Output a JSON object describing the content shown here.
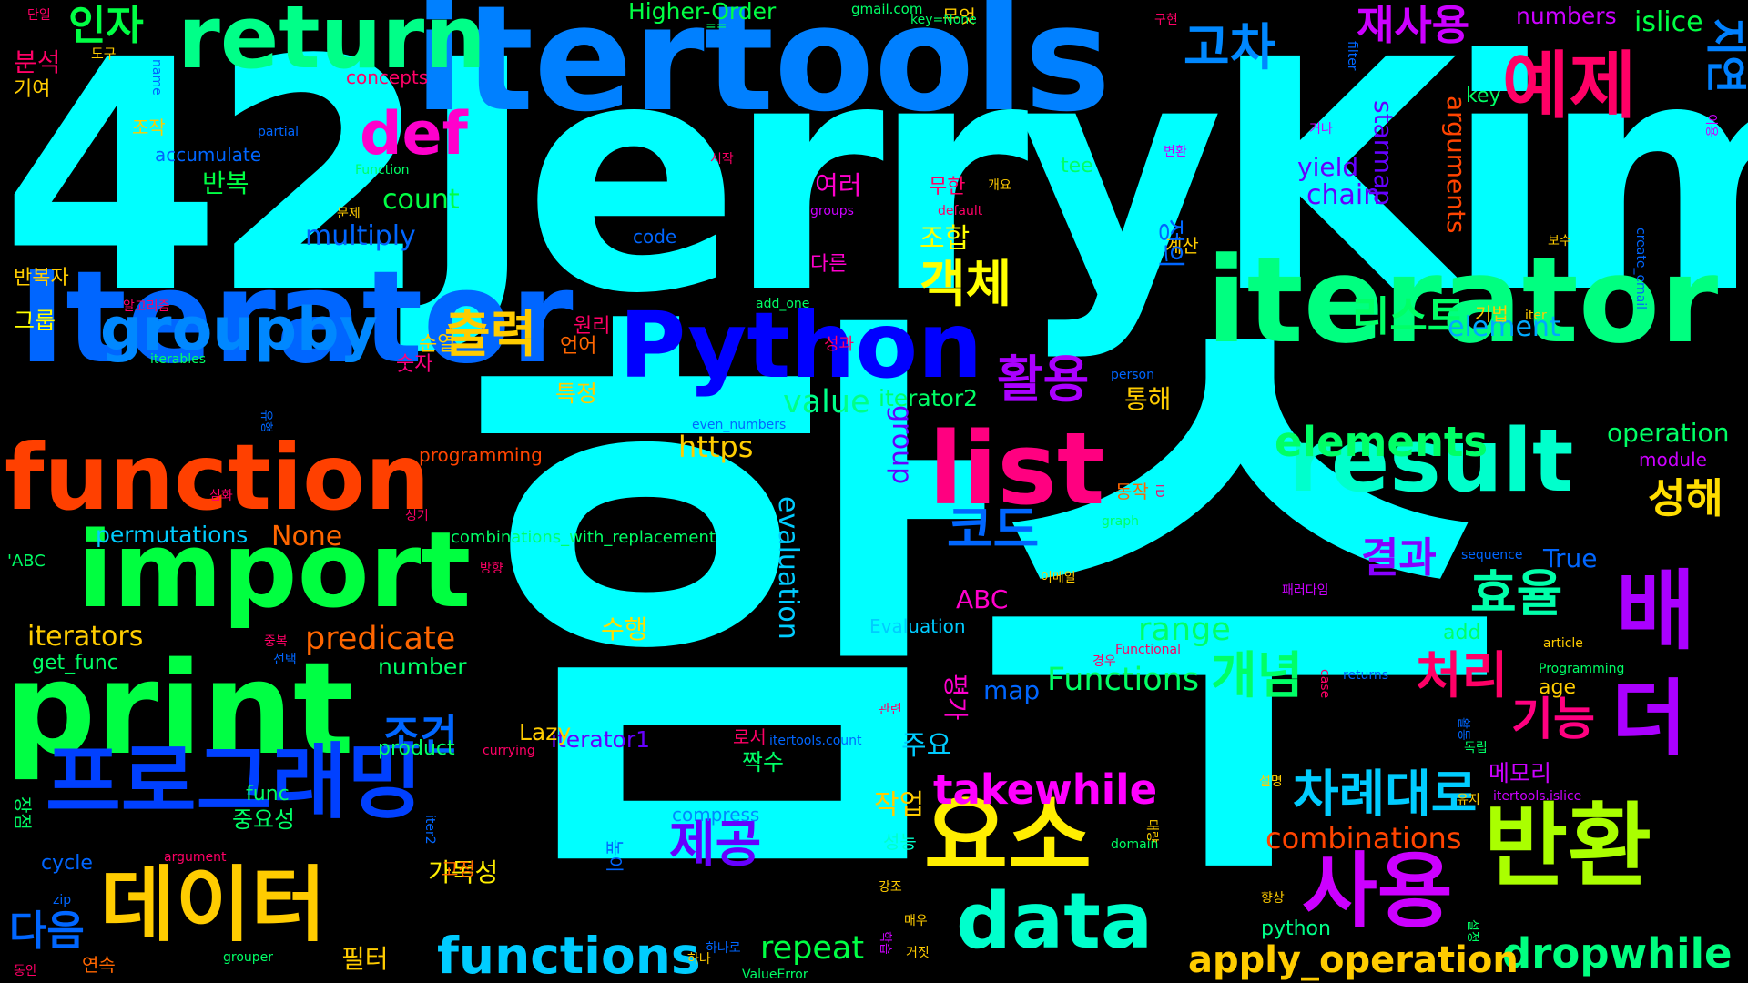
{
  "cloud": {
    "words": [
      {
        "text": "함수",
        "color": "#00ffff"
      },
      {
        "text": "42JerryKim",
        "color": "#00ffff"
      },
      {
        "text": "itertools",
        "color": "#0080ff"
      },
      {
        "text": "Iterator",
        "color": "#0066ff"
      },
      {
        "text": "iterator",
        "color": "#00ff80"
      },
      {
        "text": "return",
        "color": "#00ff88"
      },
      {
        "text": "Python",
        "color": "#0000ff"
      },
      {
        "text": "function",
        "color": "#ff4000"
      },
      {
        "text": "print",
        "color": "#00ff44"
      },
      {
        "text": "import",
        "color": "#00ff40"
      },
      {
        "text": "result",
        "color": "#00ffcc"
      },
      {
        "text": "list",
        "color": "#ff0080"
      },
      {
        "text": "data",
        "color": "#00ffcc"
      },
      {
        "text": "프로그래밍",
        "color": "#0040ff"
      },
      {
        "text": "데이터",
        "color": "#ffcc00"
      },
      {
        "text": "요소",
        "color": "#ffee00"
      },
      {
        "text": "반환",
        "color": "#aaff00"
      },
      {
        "text": "사용",
        "color": "#cc00ff"
      },
      {
        "text": "예제",
        "color": "#ff0066"
      },
      {
        "text": "배",
        "color": "#aa00ff"
      },
      {
        "text": "더",
        "color": "#aa00ff"
      },
      {
        "text": "groupby",
        "color": "#0088ff"
      },
      {
        "text": "def",
        "color": "#ff00cc"
      },
      {
        "text": "functions",
        "color": "#00ccff"
      },
      {
        "text": "dropwhile",
        "color": "#00ff80"
      },
      {
        "text": "apply_operation",
        "color": "#ffcc00"
      },
      {
        "text": "takewhile",
        "color": "#ff00ff"
      },
      {
        "text": "elements",
        "color": "#00ff66"
      },
      {
        "text": "출력",
        "color": "#ffcc00"
      },
      {
        "text": "활용",
        "color": "#aa00ff"
      },
      {
        "text": "객체",
        "color": "#ffff00"
      },
      {
        "text": "코드",
        "color": "#0066ff"
      },
      {
        "text": "효율",
        "color": "#00ffaa"
      },
      {
        "text": "개념",
        "color": "#00ff66"
      },
      {
        "text": "처리",
        "color": "#ff0066"
      },
      {
        "text": "차례대로",
        "color": "#00ccff"
      },
      {
        "text": "기능",
        "color": "#ff0080"
      },
      {
        "text": "제공",
        "color": "#6600ff"
      },
      {
        "text": "고차",
        "color": "#0088ff"
      },
      {
        "text": "인자",
        "color": "#00ff44"
      },
      {
        "text": "재사용",
        "color": "#cc00ff"
      },
      {
        "text": "지연",
        "color": "#0080ff"
      },
      {
        "text": "리스트",
        "color": "#00ff66"
      },
      {
        "text": "성해",
        "color": "#ffdd00"
      },
      {
        "text": "결과",
        "color": "#8800ff"
      },
      {
        "text": "다음",
        "color": "#0066ff"
      },
      {
        "text": "조건",
        "color": "#0066ff"
      },
      {
        "text": "predicate",
        "color": "#ff6600"
      },
      {
        "text": "value",
        "color": "#00ff88"
      },
      {
        "text": "Functions",
        "color": "#00ff66"
      },
      {
        "text": "combinations",
        "color": "#ff4400"
      },
      {
        "text": "repeat",
        "color": "#00ff44"
      },
      {
        "text": "iterators",
        "color": "#ffcc00"
      },
      {
        "text": "permutations",
        "color": "#00ccff"
      },
      {
        "text": "None",
        "color": "#ff6600"
      },
      {
        "text": "https",
        "color": "#ffcc00"
      },
      {
        "text": "range",
        "color": "#00ff66"
      },
      {
        "text": "multiply",
        "color": "#0066ff"
      },
      {
        "text": "count",
        "color": "#00ff44"
      },
      {
        "text": "evaluation",
        "color": "#00ccff"
      },
      {
        "text": "group",
        "color": "#6600ff"
      },
      {
        "text": "operation",
        "color": "#00ff66"
      },
      {
        "text": "element",
        "color": "#00aaff"
      },
      {
        "text": "arguments",
        "color": "#ff4400"
      },
      {
        "text": "chain",
        "color": "#6600ff"
      },
      {
        "text": "yield",
        "color": "#6600ff"
      },
      {
        "text": "starmap",
        "color": "#6600ff"
      },
      {
        "text": "islice",
        "color": "#00ff44"
      },
      {
        "text": "numbers",
        "color": "#cc00ff"
      },
      {
        "text": "Higher-Order",
        "color": "#00ff44"
      },
      {
        "text": "iterator1",
        "color": "#6600ff"
      },
      {
        "text": "iterator2",
        "color": "#00ff66"
      },
      {
        "text": "map",
        "color": "#0066ff"
      },
      {
        "text": "True",
        "color": "#0066ff"
      },
      {
        "text": "ABC",
        "color": "#ff00cc"
      },
      {
        "text": "Lazy",
        "color": "#ffcc00"
      },
      {
        "text": "product",
        "color": "#00ff66"
      },
      {
        "text": "number",
        "color": "#00ff66"
      },
      {
        "text": "add",
        "color": "#00ff66"
      },
      {
        "text": "age",
        "color": "#ffcc00"
      },
      {
        "text": "module",
        "color": "#cc00ff"
      },
      {
        "text": "python",
        "color": "#00ff88"
      },
      {
        "text": "tee",
        "color": "#00ff66"
      },
      {
        "text": "key",
        "color": "#00ff66"
      },
      {
        "text": "code",
        "color": "#0066ff"
      },
      {
        "text": "accumulate",
        "color": "#0066ff"
      },
      {
        "text": "cycle",
        "color": "#0066ff"
      },
      {
        "text": "get_func",
        "color": "#00ff66"
      },
      {
        "text": "func",
        "color": "#00ff66"
      },
      {
        "text": "compress",
        "color": "#0088ff"
      },
      {
        "text": "Evaluation",
        "color": "#00ccff"
      },
      {
        "text": "programming",
        "color": "#ff4400"
      },
      {
        "text": "concepts",
        "color": "#ff0066"
      },
      {
        "text": "수행",
        "color": "#ffdd00"
      },
      {
        "text": "평가",
        "color": "#ff00cc"
      },
      {
        "text": "반복",
        "color": "#00ff44"
      },
      {
        "text": "분석",
        "color": "#ff0066"
      },
      {
        "text": "주요",
        "color": "#00ccff"
      },
      {
        "text": "작업",
        "color": "#ffcc00"
      },
      {
        "text": "조합",
        "color": "#ffff00"
      },
      {
        "text": "여러",
        "color": "#ff00cc"
      },
      {
        "text": "필터",
        "color": "#ffcc00"
      },
      {
        "text": "특정",
        "color": "#ffcc00"
      },
      {
        "text": "통해",
        "color": "#ffcc00"
      },
      {
        "text": "메모리",
        "color": "#cc00ff"
      },
      {
        "text": "중요성",
        "color": "#00ff66"
      },
      {
        "text": "가독성",
        "color": "#ffee00"
      },
      {
        "text": "짝수",
        "color": "#00ff66"
      },
      {
        "text": "순열",
        "color": "#ffcc00"
      },
      {
        "text": "숫자",
        "color": "#ff0080"
      },
      {
        "text": "원리",
        "color": "#ff0066"
      },
      {
        "text": "언어",
        "color": "#ff6600"
      },
      {
        "text": "그룹",
        "color": "#ffff00"
      },
      {
        "text": "반복자",
        "color": "#ffcc00"
      },
      {
        "text": "기여",
        "color": "#ffcc00"
      },
      {
        "text": "조작",
        "color": "#ffcc00"
      },
      {
        "text": "다른",
        "color": "#ff00cc"
      },
      {
        "text": "무한",
        "color": "#ff0066"
      },
      {
        "text": "무엇",
        "color": "#ffcc00"
      },
      {
        "text": "계산",
        "color": "#ffcc00"
      },
      {
        "text": "동작",
        "color": "#ff6600"
      },
      {
        "text": "연속",
        "color": "#ff6600"
      },
      {
        "text": "장점",
        "color": "#00ff66"
      },
      {
        "text": "성능",
        "color": "#00ffcc"
      },
      {
        "text": "고정",
        "color": "#ff6600"
      },
      {
        "text": "높이",
        "color": "#0066ff"
      },
      {
        "text": "로서",
        "color": "#ff0066"
      },
      {
        "text": "기법",
        "color": "#ffcc00"
      },
      {
        "text": "성과",
        "color": "#ff0066"
      },
      {
        "text": "정의",
        "color": "#0066ff"
      },
      {
        "text": "도구",
        "color": "#ffcc00"
      },
      {
        "text": "combinations_with_replacement",
        "color": "#00ff66"
      },
      {
        "text": "'ABC",
        "color": "#00ff66"
      },
      {
        "text": "gmail.com",
        "color": "#00ff66"
      },
      {
        "text": "key=None",
        "color": "#00ff66"
      },
      {
        "text": "==",
        "color": "#00ff66"
      },
      {
        "text": "Function",
        "color": "#00ff66"
      },
      {
        "text": "default",
        "color": "#ff0066"
      },
      {
        "text": "groups",
        "color": "#cc00ff"
      },
      {
        "text": "add_one",
        "color": "#00ff66"
      },
      {
        "text": "person",
        "color": "#0066ff"
      },
      {
        "text": "even_numbers",
        "color": "#0066ff"
      },
      {
        "text": "iterables",
        "color": "#00ff66"
      },
      {
        "text": "partial",
        "color": "#0066ff"
      },
      {
        "text": "graph",
        "color": "#00ff66"
      },
      {
        "text": "sequence",
        "color": "#0066ff"
      },
      {
        "text": "article",
        "color": "#ffcc00"
      },
      {
        "text": "Programming",
        "color": "#00ff66"
      },
      {
        "text": "returns",
        "color": "#0066ff"
      },
      {
        "text": "itertools.count",
        "color": "#0066ff"
      },
      {
        "text": "itertools.islice",
        "color": "#cc00ff"
      },
      {
        "text": "currying",
        "color": "#ff0066"
      },
      {
        "text": "argument",
        "color": "#ff0066"
      },
      {
        "text": "domain",
        "color": "#00ff66"
      },
      {
        "text": "grouper",
        "color": "#00ff66"
      },
      {
        "text": "ValueError",
        "color": "#00ff66"
      },
      {
        "text": "iter",
        "color": "#ffcc00"
      },
      {
        "text": "create_email",
        "color": "#0066ff"
      },
      {
        "text": "filter",
        "color": "#0066ff"
      },
      {
        "text": "name",
        "color": "#0066ff"
      },
      {
        "text": "Functional",
        "color": "#ff0066"
      },
      {
        "text": "case",
        "color": "#ff0066"
      },
      {
        "text": "iter2",
        "color": "#0066ff"
      },
      {
        "text": "zip",
        "color": "#0066ff"
      },
      {
        "text": "TD",
        "color": "#ff0066"
      },
      {
        "text": "단일",
        "color": "#ff0066"
      },
      {
        "text": "구현",
        "color": "#ff0066"
      },
      {
        "text": "이용",
        "color": "#cc00ff"
      },
      {
        "text": "거나",
        "color": "#cc00ff"
      },
      {
        "text": "변환",
        "color": "#cc00ff"
      },
      {
        "text": "시작",
        "color": "#ff0066"
      },
      {
        "text": "개요",
        "color": "#ffcc00"
      },
      {
        "text": "문제",
        "color": "#ffcc00"
      },
      {
        "text": "보수",
        "color": "#ffcc00"
      },
      {
        "text": "알고리즘",
        "color": "#ff0066"
      },
      {
        "text": "심화",
        "color": "#ff0066"
      },
      {
        "text": "성기",
        "color": "#ff0066"
      },
      {
        "text": "방향",
        "color": "#ff0066"
      },
      {
        "text": "이메일",
        "color": "#ffcc00"
      },
      {
        "text": "패러다임",
        "color": "#cc00ff"
      },
      {
        "text": "중복",
        "color": "#ff0066"
      },
      {
        "text": "선택",
        "color": "#0066ff"
      },
      {
        "text": "경우",
        "color": "#ff0066"
      },
      {
        "text": "관련",
        "color": "#ff0066"
      },
      {
        "text": "독립",
        "color": "#00ff66"
      },
      {
        "text": "설명",
        "color": "#ffcc00"
      },
      {
        "text": "유지",
        "color": "#ffcc00"
      },
      {
        "text": "대량",
        "color": "#ffcc00"
      },
      {
        "text": "강조",
        "color": "#ffcc00"
      },
      {
        "text": "향상",
        "color": "#ffcc00"
      },
      {
        "text": "매우",
        "color": "#ffcc00"
      },
      {
        "text": "설정",
        "color": "#00ff66"
      },
      {
        "text": "하나로",
        "color": "#0066ff"
      },
      {
        "text": "거짓",
        "color": "#ffcc00"
      },
      {
        "text": "동안",
        "color": "#ff0066"
      },
      {
        "text": "하나",
        "color": "#ffcc00"
      },
      {
        "text": "활동",
        "color": "#0066ff"
      },
      {
        "text": "유형",
        "color": "#0066ff"
      },
      {
        "text": "학습",
        "color": "#cc00ff"
      }
    ]
  }
}
